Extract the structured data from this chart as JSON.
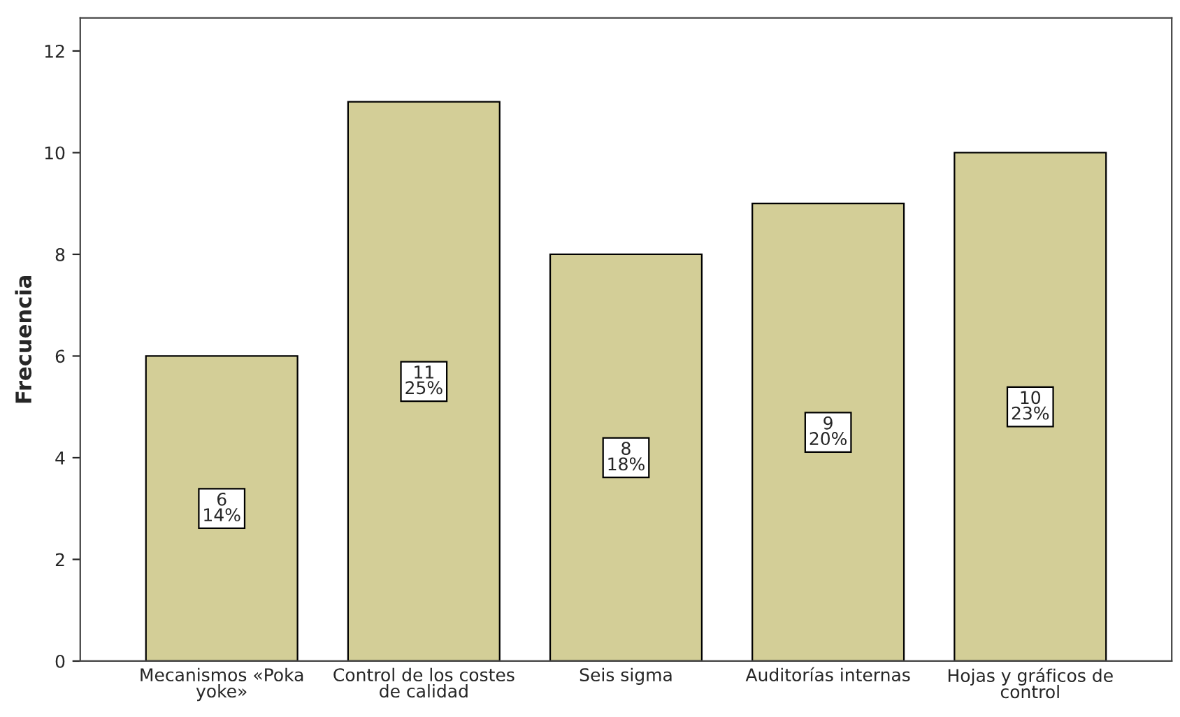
{
  "chart_data": {
    "type": "bar",
    "ylabel": "Frecuencia",
    "categories": [
      "Mecanismos «Poka\nyoke»",
      "Control de los costes\nde calidad",
      "Seis sigma",
      "Auditorías internas",
      "Hojas y gráficos de\ncontrol"
    ],
    "values": [
      6,
      11,
      8,
      9,
      10
    ],
    "value_labels": [
      "6\n14%",
      "11\n25%",
      "8\n18%",
      "9\n20%",
      "10\n23%"
    ],
    "color": "#d3ce97",
    "ylim": [
      0,
      12.65
    ],
    "yticks": [
      0,
      2,
      4,
      6,
      8,
      10,
      12
    ],
    "grid": false,
    "legend": false
  }
}
